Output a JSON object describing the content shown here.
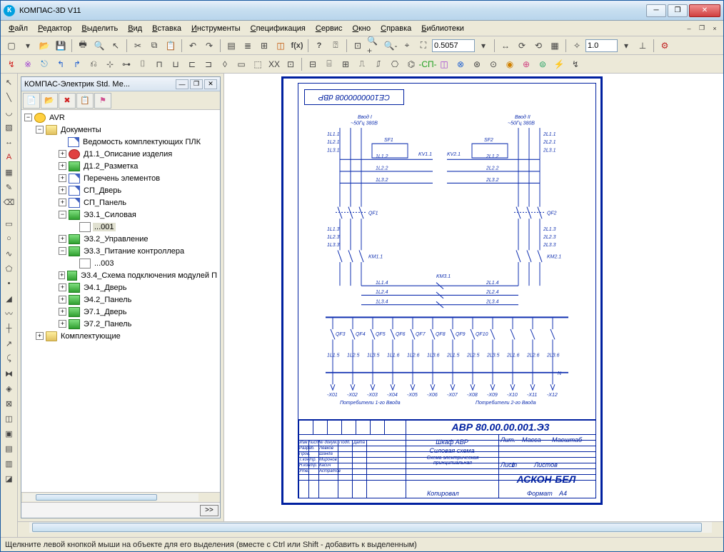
{
  "colors": {
    "accent": "#0020a0",
    "titlebar_grad_top": "#e8f0fa",
    "titlebar_grad_bot": "#b8d5ec",
    "workspace_bg": "#ece9d8",
    "canvas_bg": "#ffffff",
    "close_red": "#d04040"
  },
  "window": {
    "title": "КОМПАС-3D V11",
    "app_icon_letter": "К"
  },
  "menubar": {
    "items": [
      "Файл",
      "Редактор",
      "Выделить",
      "Вид",
      "Вставка",
      "Инструменты",
      "Спецификация",
      "Сервис",
      "Окно",
      "Справка",
      "Библиотеки"
    ]
  },
  "toolbar1": {
    "zoom_value": "0.5057",
    "scale_value": "1.0"
  },
  "panel": {
    "title": "КОМПАС-Электрик Std. Ме...",
    "root": "AVR",
    "documents_label": "Документы",
    "komplekt_label": "Комплектующие",
    "docs": [
      {
        "label": "Ведомость комплектующих ПЛК",
        "icon": "doc",
        "depth": 3,
        "expandable": false
      },
      {
        "label": "Д1.1_Описание изделия",
        "icon": "red",
        "depth": 3,
        "expandable": true
      },
      {
        "label": "Д1.2_Разметка",
        "icon": "grn",
        "depth": 3,
        "expandable": true
      },
      {
        "label": "Перечень элементов",
        "icon": "doc",
        "depth": 3,
        "expandable": true
      },
      {
        "label": "СП_Дверь",
        "icon": "doc",
        "depth": 3,
        "expandable": true
      },
      {
        "label": "СП_Панель",
        "icon": "doc",
        "depth": 3,
        "expandable": true
      },
      {
        "label": "Э3.1_Силовая",
        "icon": "grn",
        "depth": 3,
        "expandable": true,
        "expanded": true
      },
      {
        "label": "...001",
        "icon": "sheet",
        "depth": 4,
        "expandable": false,
        "selected": true
      },
      {
        "label": "Э3.2_Управление",
        "icon": "grn",
        "depth": 3,
        "expandable": true
      },
      {
        "label": "Э3.3_Питание контроллера",
        "icon": "grn",
        "depth": 3,
        "expandable": true,
        "expanded": true
      },
      {
        "label": "...003",
        "icon": "sheet",
        "depth": 4,
        "expandable": false
      },
      {
        "label": "Э3.4_Схема подключения модулей П",
        "icon": "grn",
        "depth": 3,
        "expandable": true
      },
      {
        "label": "Э4.1_Дверь",
        "icon": "grn",
        "depth": 3,
        "expandable": true
      },
      {
        "label": "Э4.2_Панель",
        "icon": "grn",
        "depth": 3,
        "expandable": true
      },
      {
        "label": "Э7.1_Дверь",
        "icon": "grn",
        "depth": 3,
        "expandable": true
      },
      {
        "label": "Э7.2_Панель",
        "icon": "grn",
        "depth": 3,
        "expandable": true
      }
    ],
    "go_btn": ">>"
  },
  "drawing": {
    "code_reversed": "СЕ1000000008 dBP",
    "header_left": "Ввод I",
    "header_left_sub": "~50Гц 380В",
    "header_right": "Ввод II",
    "header_right_sub": "~50Гц 380В",
    "components": {
      "left_breakers": [
        "QF1"
      ],
      "right_breakers": [
        "QF2"
      ],
      "contactors": [
        "KV1.1",
        "KV2.1",
        "KM1.1",
        "KM2.1",
        "KM3.1"
      ],
      "lines_left": [
        "1L1.1",
        "1L2.1",
        "1L3.1",
        "1L1.2",
        "1L2.2",
        "1L3.2"
      ],
      "lines_right": [
        "2L1.1",
        "2L2.1",
        "2L3.1",
        "2L1.2",
        "2L2.2",
        "2L3.2"
      ],
      "bus_labels": [
        "1L1.3",
        "1L2.3",
        "1L3.3",
        "1L1.4",
        "1L2.4",
        "1L3.4",
        "2L1.3",
        "2L2.3",
        "2L3.3",
        "2L1.4",
        "2L2.4",
        "2L3.4"
      ],
      "output_breakers": [
        "QF3",
        "QF4",
        "QF5",
        "QF6",
        "QF7",
        "QF8",
        "QF9",
        "QF10"
      ],
      "outputs": [
        "1L1.5",
        "1L2.5",
        "1L3.5",
        "1L1.6",
        "1L2.6",
        "1L3.6",
        "2L1.5",
        "2L2.5",
        "2L3.5",
        "2L1.6",
        "2L2.6",
        "2L3.6"
      ],
      "terminals": [
        "-X01",
        "-X02",
        "-X03",
        "-X04",
        "-X05",
        "-X06",
        "-X07",
        "-X08",
        "-X09",
        "-X10",
        "-X11",
        "-X12"
      ],
      "bus_N": "N",
      "feeder_left": "Потребители 1-го Ввода",
      "feeder_right": "Потребители 2-го Ввода"
    },
    "titleblock": {
      "drawing_number": "АВР 80.00.00.001.Э3",
      "name1": "Шкаф АВР",
      "name2": "Силовая схема",
      "name3": "Схема электрическая принципиальная",
      "company": "АСКОН-БЕЛ",
      "col_labels": [
        "Изм",
        "Лист",
        "№ докум.",
        "Подп.",
        "Дата"
      ],
      "rows": [
        [
          "Разраб.",
          "Левков"
        ],
        [
          "Пров.",
          "Шанда"
        ],
        [
          "Т.контр.",
          "Миронов"
        ],
        [
          "Н.контр.",
          "Касич"
        ],
        [
          "Утв.",
          "Астратов"
        ]
      ],
      "lit": "Лит.",
      "massa": "Масса",
      "masshtab": "Масштаб",
      "list": "Лист",
      "listov": "Листов",
      "list_val": "1",
      "kopiroval": "Копировал",
      "format": "Формат",
      "format_val": "А4"
    }
  },
  "statusbar": {
    "hint": "Щелкните левой кнопкой мыши на объекте для его выделения (вместе с Ctrl или Shift - добавить к выделенным)"
  }
}
